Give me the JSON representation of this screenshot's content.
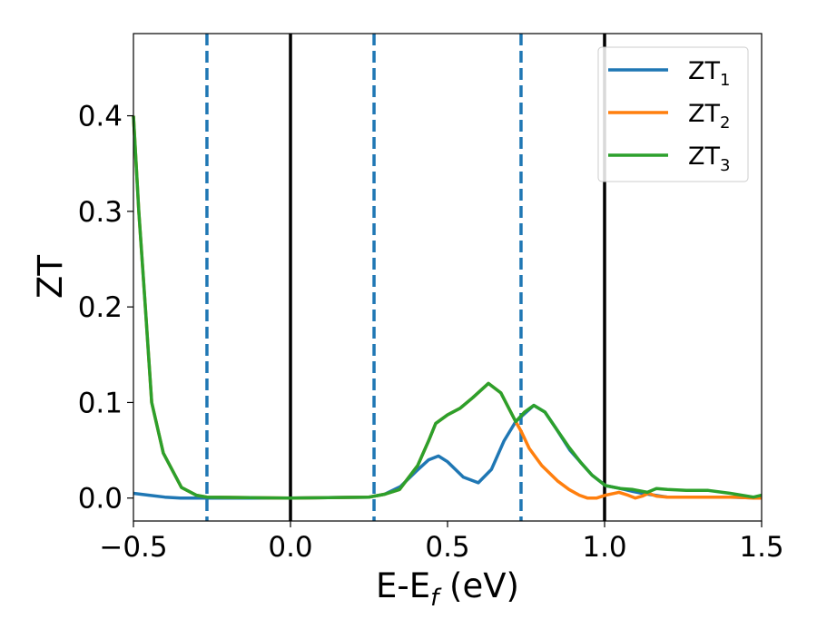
{
  "chart_data": {
    "type": "line",
    "title": "",
    "xlabel": "E-E",
    "xlabel_sub": "f",
    "xlabel_unit": " (eV)",
    "ylabel": "ZT",
    "xlim": [
      -0.5,
      1.5
    ],
    "ylim": [
      -0.024,
      0.486
    ],
    "xticks": [
      -0.5,
      0.0,
      0.5,
      1.0,
      1.5
    ],
    "xtick_labels": [
      "−0.5",
      "0.0",
      "0.5",
      "1.0",
      "1.5"
    ],
    "yticks": [
      0.0,
      0.1,
      0.2,
      0.3,
      0.4
    ],
    "ytick_labels": [
      "0.0",
      "0.1",
      "0.2",
      "0.3",
      "0.4"
    ],
    "grid": false,
    "legend_position": "top-right",
    "vlines_solid": [
      0.0,
      1.0
    ],
    "vlines_dashed": [
      -0.266,
      0.266,
      0.734
    ],
    "vline_solid_color": "#000000",
    "vline_dashed_color": "#1f77b4",
    "series": [
      {
        "name": "ZT",
        "sub": "1",
        "color": "#1f77b4",
        "x": [
          -0.5,
          -0.45,
          -0.4,
          -0.35,
          -0.3,
          0.0,
          0.25,
          0.3,
          0.35,
          0.4,
          0.44,
          0.471,
          0.5,
          0.55,
          0.598,
          0.64,
          0.68,
          0.717,
          0.734,
          0.775,
          0.81,
          0.847,
          0.89,
          0.925,
          0.96,
          1.003,
          1.05,
          1.09,
          1.12,
          1.16,
          1.2,
          1.3,
          1.4,
          1.5
        ],
        "y": [
          0.005,
          0.003,
          0.001,
          0.0,
          0.0,
          0.0,
          0.001,
          0.004,
          0.012,
          0.028,
          0.04,
          0.044,
          0.038,
          0.022,
          0.016,
          0.03,
          0.06,
          0.08,
          0.085,
          0.097,
          0.09,
          0.072,
          0.05,
          0.037,
          0.024,
          0.013,
          0.01,
          0.007,
          0.005,
          0.003,
          0.001,
          0.001,
          0.001,
          0.0
        ]
      },
      {
        "name": "ZT",
        "sub": "2",
        "color": "#ff7f0e",
        "x": [
          -0.5,
          -0.483,
          -0.462,
          -0.442,
          -0.405,
          -0.347,
          -0.3,
          -0.266,
          0.0,
          0.25,
          0.3,
          0.347,
          0.405,
          0.44,
          0.462,
          0.5,
          0.54,
          0.58,
          0.63,
          0.67,
          0.717,
          0.734,
          0.76,
          0.8,
          0.85,
          0.887,
          0.92,
          0.945,
          0.975,
          1.003,
          1.046,
          1.075,
          1.098,
          1.12,
          1.14,
          1.165,
          1.2,
          1.33,
          1.42,
          1.474,
          1.5
        ],
        "y": [
          0.4,
          0.3,
          0.2,
          0.1,
          0.047,
          0.011,
          0.003,
          0.001,
          0.0,
          0.001,
          0.004,
          0.009,
          0.034,
          0.06,
          0.078,
          0.087,
          0.094,
          0.105,
          0.12,
          0.11,
          0.08,
          0.07,
          0.052,
          0.034,
          0.018,
          0.009,
          0.003,
          0.0,
          0.0,
          0.003,
          0.006,
          0.003,
          0.0,
          0.002,
          0.005,
          0.002,
          0.001,
          0.001,
          0.001,
          0.0,
          0.0
        ]
      },
      {
        "name": "ZT",
        "sub": "3",
        "color": "#2ca02c",
        "x": [
          -0.5,
          -0.483,
          -0.462,
          -0.442,
          -0.405,
          -0.347,
          -0.3,
          -0.266,
          0.0,
          0.25,
          0.3,
          0.347,
          0.405,
          0.44,
          0.462,
          0.5,
          0.54,
          0.58,
          0.63,
          0.67,
          0.717,
          0.745,
          0.775,
          0.81,
          0.847,
          0.885,
          0.925,
          0.96,
          1.003,
          1.05,
          1.09,
          1.136,
          1.165,
          1.2,
          1.26,
          1.33,
          1.4,
          1.474,
          1.5
        ],
        "y": [
          0.4,
          0.3,
          0.2,
          0.1,
          0.047,
          0.011,
          0.003,
          0.001,
          0.0,
          0.001,
          0.004,
          0.009,
          0.034,
          0.06,
          0.078,
          0.087,
          0.094,
          0.105,
          0.12,
          0.11,
          0.08,
          0.09,
          0.097,
          0.09,
          0.072,
          0.054,
          0.037,
          0.024,
          0.013,
          0.01,
          0.009,
          0.006,
          0.01,
          0.009,
          0.008,
          0.008,
          0.005,
          0.001,
          0.003
        ]
      }
    ]
  }
}
